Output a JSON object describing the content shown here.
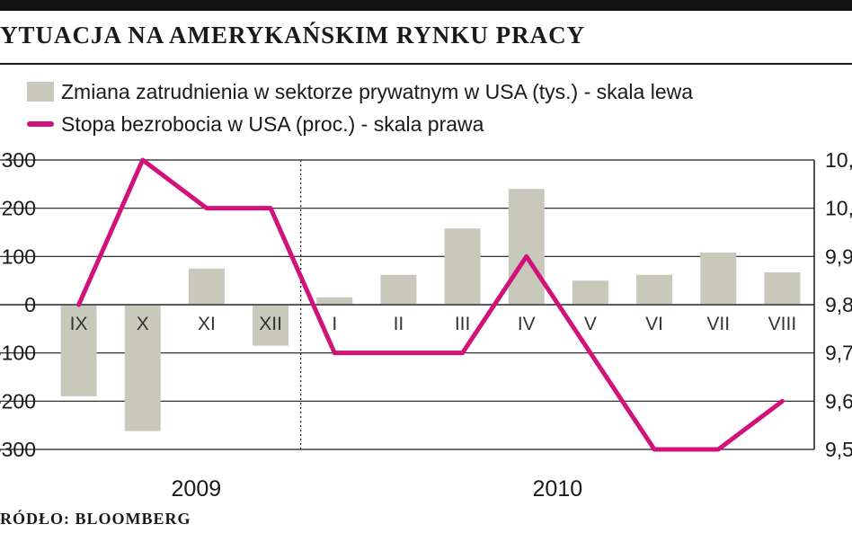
{
  "title": "YTUACJA NA AMERYKAŃSKIM RYNKU PRACY",
  "source": "RÓDŁO: BLOOMBERG",
  "colors": {
    "bar": "#c9c9bb",
    "line": "#d0127a",
    "axis": "#1a1a1a",
    "grid": "#8a8a8a"
  },
  "chart_data": {
    "type": "bar+line",
    "categories": [
      "IX",
      "X",
      "XI",
      "XII",
      "I",
      "II",
      "III",
      "IV",
      "V",
      "VI",
      "VII",
      "VIII"
    ],
    "years": [
      "2009",
      "2010"
    ],
    "series": [
      {
        "name": "Zmiana zatrudnienia w sektorze prywatnym w USA (tys.) - skala lewa",
        "type": "bar",
        "axis": "left",
        "values": [
          -190,
          -262,
          75,
          -85,
          15,
          62,
          158,
          240,
          50,
          62,
          108,
          67
        ]
      },
      {
        "name": "Stopa bezrobocia w USA (proc.) - skala prawa",
        "type": "line",
        "axis": "right",
        "values": [
          9.8,
          10.1,
          10.0,
          10.0,
          9.7,
          9.7,
          9.7,
          9.9,
          9.7,
          9.5,
          9.5,
          9.6
        ]
      }
    ],
    "y_left": {
      "range": [
        -300,
        300
      ],
      "ticks": [
        "300",
        "200",
        "100",
        "0",
        "-100",
        "-200",
        "-300"
      ]
    },
    "y_right": {
      "range": [
        9.5,
        10.1
      ],
      "ticks": [
        "10,",
        "10,",
        "9,9",
        "9,8",
        "9,7",
        "9,6",
        "9,5"
      ]
    },
    "grid": true
  }
}
